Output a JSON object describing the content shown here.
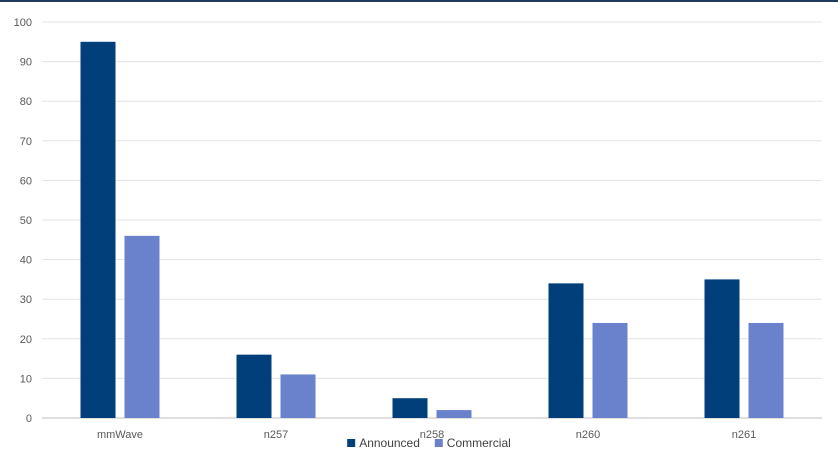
{
  "chart_data": {
    "type": "bar",
    "categories": [
      "mmWave",
      "n257",
      "n258",
      "n260",
      "n261"
    ],
    "series": [
      {
        "name": "Announced",
        "values": [
          95,
          16,
          5,
          34,
          35
        ]
      },
      {
        "name": "Commercial",
        "values": [
          46,
          11,
          2,
          24,
          24
        ]
      }
    ],
    "colors": [
      "#003f7a",
      "#6a82cc"
    ],
    "ylim": [
      0,
      100
    ],
    "yticks": [
      "0",
      "10",
      "20",
      "30",
      "40",
      "50",
      "60",
      "70",
      "80",
      "90",
      "100"
    ],
    "grid": true,
    "legend_position": "bottom",
    "title": "",
    "xlabel": "",
    "ylabel": ""
  }
}
